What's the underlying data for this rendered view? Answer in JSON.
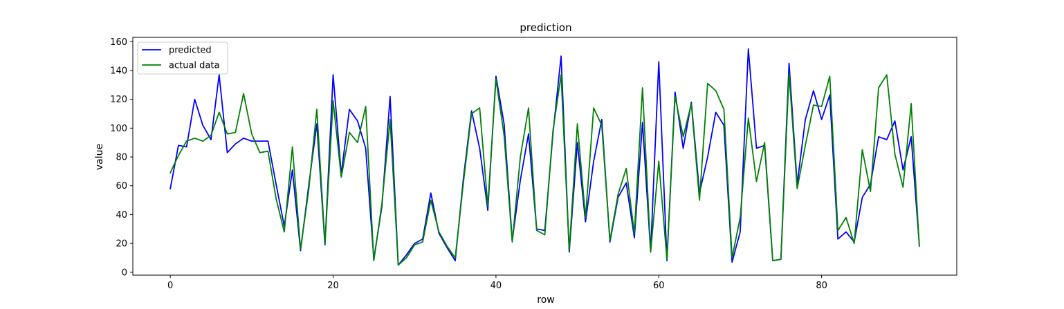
{
  "chart_data": {
    "type": "line",
    "title": "prediction",
    "xlabel": "row",
    "ylabel": "value",
    "xlim": [
      -4.6,
      96.6
    ],
    "ylim": [
      -2,
      163
    ],
    "xticks": [
      0,
      20,
      40,
      60,
      80
    ],
    "yticks": [
      0,
      20,
      40,
      60,
      80,
      100,
      120,
      140,
      160
    ],
    "grid": false,
    "legend_position": "top-left",
    "x": [
      0,
      1,
      2,
      3,
      4,
      5,
      6,
      7,
      8,
      9,
      10,
      11,
      12,
      13,
      14,
      15,
      16,
      17,
      18,
      19,
      20,
      21,
      22,
      23,
      24,
      25,
      26,
      27,
      28,
      29,
      30,
      31,
      32,
      33,
      34,
      35,
      36,
      37,
      38,
      39,
      40,
      41,
      42,
      43,
      44,
      45,
      46,
      47,
      48,
      49,
      50,
      51,
      52,
      53,
      54,
      55,
      56,
      57,
      58,
      59,
      60,
      61,
      62,
      63,
      64,
      65,
      66,
      67,
      68,
      69,
      70,
      71,
      72,
      73,
      74,
      75,
      76,
      77,
      78,
      79,
      80,
      81,
      82,
      83,
      84,
      85,
      86,
      87,
      88,
      89,
      90,
      91,
      92
    ],
    "series": [
      {
        "name": "predicted",
        "color": "#0000ff",
        "values": [
          58,
          88,
          87,
          120,
          102,
          92,
          137,
          83,
          89,
          93,
          91,
          91,
          91,
          61,
          32,
          71,
          15,
          60,
          103,
          19,
          137,
          68,
          113,
          105,
          86,
          9,
          46,
          122,
          5,
          12,
          20,
          23,
          55,
          27,
          17,
          8,
          65,
          112,
          86,
          43,
          136,
          103,
          22,
          64,
          96,
          30,
          29,
          96,
          150,
          14,
          90,
          35,
          77,
          106,
          21,
          52,
          62,
          24,
          104,
          14,
          146,
          8,
          125,
          86,
          118,
          55,
          80,
          111,
          102,
          7,
          28,
          155,
          86,
          88,
          8,
          9,
          145,
          61,
          106,
          126,
          106,
          123,
          23,
          28,
          21,
          52,
          61,
          94,
          92,
          105,
          71,
          94,
          19
        ]
      },
      {
        "name": "actual data",
        "color": "#008000",
        "values": [
          69,
          81,
          91,
          93,
          91,
          95,
          111,
          96,
          97,
          124,
          96,
          83,
          84,
          51,
          28,
          87,
          16,
          57,
          113,
          20,
          119,
          66,
          97,
          90,
          115,
          8,
          48,
          106,
          5,
          10,
          19,
          21,
          50,
          28,
          18,
          10,
          62,
          110,
          114,
          46,
          134,
          95,
          21,
          80,
          114,
          29,
          26,
          98,
          137,
          15,
          103,
          38,
          114,
          102,
          22,
          54,
          72,
          27,
          128,
          14,
          77,
          9,
          122,
          94,
          117,
          50,
          131,
          126,
          113,
          10,
          38,
          107,
          63,
          90,
          8,
          9,
          138,
          58,
          88,
          116,
          115,
          136,
          29,
          38,
          20,
          85,
          56,
          128,
          137,
          82,
          59,
          117,
          18
        ]
      }
    ]
  }
}
